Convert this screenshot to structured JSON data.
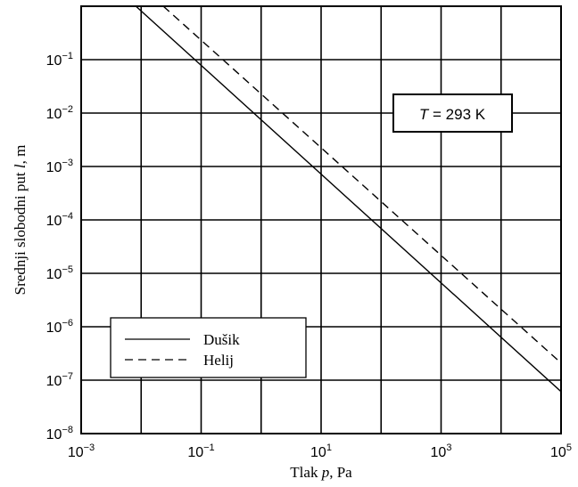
{
  "chart_data": {
    "type": "line",
    "x_scale": "log",
    "y_scale": "log",
    "xlabel_text": "Tlak ",
    "xlabel_var": "p",
    "xlabel_unit": ", Pa",
    "ylabel_text": "Srednji slobodni put ",
    "ylabel_var": "l",
    "ylabel_unit": ", m",
    "xlim": [
      0.001,
      100000
    ],
    "ylim": [
      1e-08,
      1
    ],
    "grid": true,
    "x_ticks": [
      {
        "base": "10",
        "exp": "−3"
      },
      {
        "base": "10",
        "exp": "−1"
      },
      {
        "base": "10",
        "exp": "1"
      },
      {
        "base": "10",
        "exp": "3"
      },
      {
        "base": "10",
        "exp": "5"
      }
    ],
    "x_tick_values": [
      0.001,
      0.1,
      10,
      1000,
      100000
    ],
    "y_ticks": [
      {
        "base": "10",
        "exp": "−8"
      },
      {
        "base": "10",
        "exp": "−7"
      },
      {
        "base": "10",
        "exp": "−6"
      },
      {
        "base": "10",
        "exp": "−5"
      },
      {
        "base": "10",
        "exp": "−4"
      },
      {
        "base": "10",
        "exp": "−3"
      },
      {
        "base": "10",
        "exp": "−2"
      },
      {
        "base": "10",
        "exp": "−1"
      }
    ],
    "y_tick_values": [
      1e-08,
      1e-07,
      1e-06,
      1e-05,
      0.0001,
      0.001,
      0.01,
      0.1
    ],
    "annotation": {
      "var": "T",
      "text": " = 293 K"
    },
    "legend_position": "bottom-left",
    "series": [
      {
        "name": "Dušik",
        "style": "solid",
        "color": "#000000",
        "x": [
          0.00817,
          100000
        ],
        "y": [
          1,
          6.1e-08
        ]
      },
      {
        "name": "Helij",
        "style": "dashed",
        "color": "#000000",
        "x": [
          0.0234,
          100000
        ],
        "y": [
          1,
          2.1e-07
        ]
      }
    ]
  }
}
